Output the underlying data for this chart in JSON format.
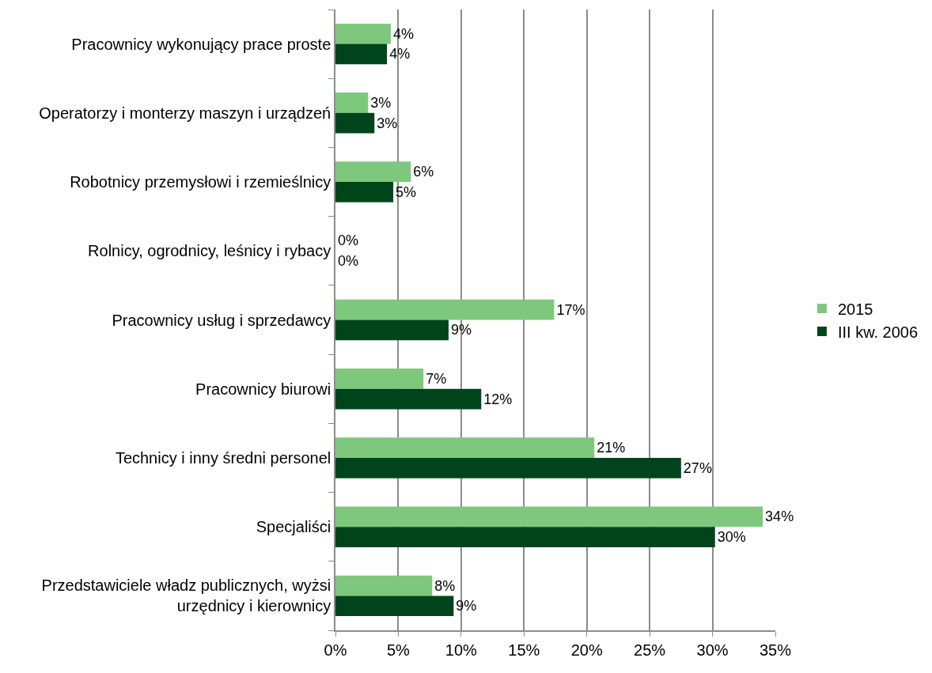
{
  "chart_data": {
    "type": "bar",
    "orientation": "horizontal",
    "categories": [
      "Pracownicy wykonujący prace proste",
      "Operatorzy i monterzy maszyn i urządzeń",
      "Robotnicy przemysłowi i rzemieślnicy",
      "Rolnicy, ogrodnicy, leśnicy i rybacy",
      "Pracownicy usług i sprzedawcy",
      "Pracownicy biurowi",
      "Technicy i inny średni personel",
      "Specjaliści",
      "Przedstawiciele władz publicznych, wyżsi urzędnicy i kierownicy"
    ],
    "series": [
      {
        "name": "2015",
        "color": "#7ec87e",
        "values": [
          4.4,
          2.6,
          6.0,
          0,
          17.4,
          7.0,
          20.6,
          34.0,
          7.7
        ],
        "value_labels": [
          "4%",
          "3%",
          "6%",
          "0%",
          "17%",
          "7%",
          "21%",
          "34%",
          "8%"
        ]
      },
      {
        "name": "III kw. 2006",
        "color": "#00441b",
        "values": [
          4.1,
          3.1,
          4.6,
          0,
          9.0,
          11.6,
          27.5,
          30.2,
          9.4
        ],
        "value_labels": [
          "4%",
          "3%",
          "5%",
          "0%",
          "9%",
          "12%",
          "27%",
          "30%",
          "9%"
        ]
      }
    ],
    "xlim": [
      0,
      35
    ],
    "xticks": [
      {
        "value": 0,
        "label": "0%"
      },
      {
        "value": 5,
        "label": "5%"
      },
      {
        "value": 10,
        "label": "10%"
      },
      {
        "value": 15,
        "label": "15%"
      },
      {
        "value": 20,
        "label": "20%"
      },
      {
        "value": 25,
        "label": "25%"
      },
      {
        "value": 30,
        "label": "30%"
      },
      {
        "value": 35,
        "label": "35%"
      }
    ],
    "grid": "x",
    "legend": "right"
  }
}
